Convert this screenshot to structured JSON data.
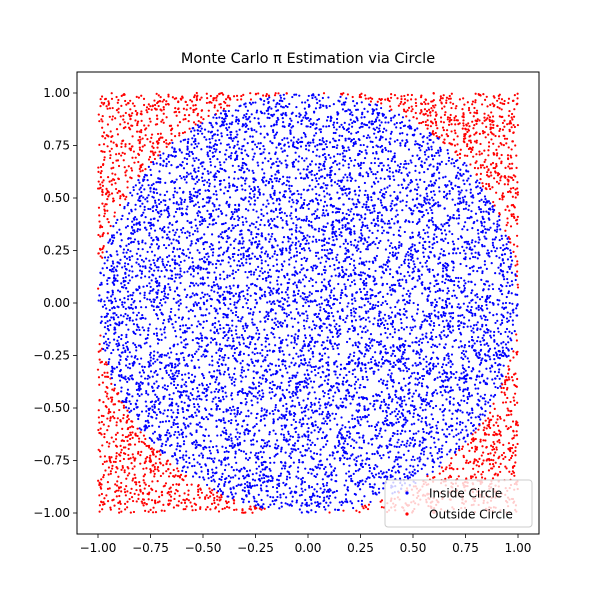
{
  "chart_data": {
    "type": "scatter",
    "title": "Monte Carlo π Estimation via Circle",
    "xlabel": "",
    "ylabel": "",
    "xlim": [
      -1.1,
      1.1
    ],
    "ylim": [
      -1.1,
      1.1
    ],
    "xticks": [
      -1.0,
      -0.75,
      -0.5,
      -0.25,
      0.0,
      0.25,
      0.5,
      0.75,
      1.0
    ],
    "yticks": [
      -1.0,
      -0.75,
      -0.5,
      -0.25,
      0.0,
      0.25,
      0.5,
      0.75,
      1.0
    ],
    "xtick_labels": [
      "−1.00",
      "−0.75",
      "−0.50",
      "−0.25",
      "0.00",
      "0.25",
      "0.50",
      "0.75",
      "1.00"
    ],
    "ytick_labels": [
      "−1.00",
      "−0.75",
      "−0.50",
      "−0.25",
      "0.00",
      "0.25",
      "0.50",
      "0.75",
      "1.00"
    ],
    "grid": false,
    "legend_position": "lower-right",
    "sampling": {
      "points_shown": 10000,
      "x_range": [
        -1,
        1
      ],
      "y_range": [
        -1,
        1
      ],
      "circle_radius": 1
    },
    "series": [
      {
        "name": "Inside Circle",
        "color": "#0000ff",
        "rule": "x^2 + y^2 <= 1"
      },
      {
        "name": "Outside Circle",
        "color": "#ff0000",
        "rule": "x^2 + y^2 > 1"
      }
    ]
  }
}
